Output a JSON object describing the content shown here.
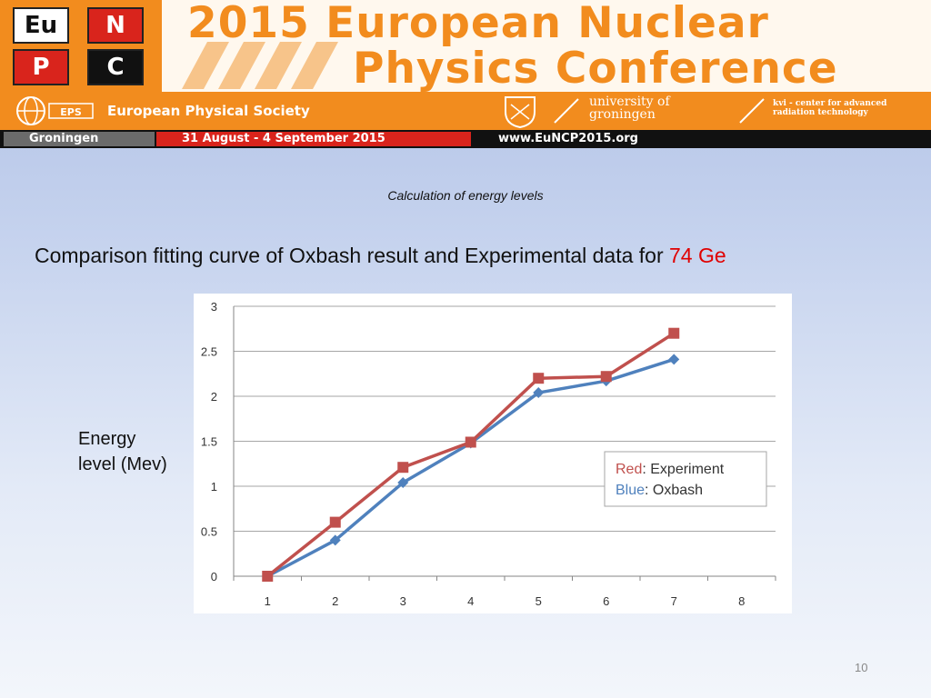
{
  "banner": {
    "logo_cells": [
      {
        "text": "Eu",
        "bg": "#ffffff",
        "fg": "#111111"
      },
      {
        "text": "N",
        "bg": "#d9241c",
        "fg": "#ffffff"
      },
      {
        "text": "P",
        "bg": "#d9241c",
        "fg": "#ffffff"
      },
      {
        "text": "C",
        "bg": "#111111",
        "fg": "#ffffff"
      }
    ],
    "conference_title_line1": "2015 European Nuclear",
    "conference_title_line2": "Physics Conference",
    "eps_logo_text": "EPS",
    "society": "European Physical Society",
    "university": "university of\ngroningen",
    "kvi": "kvi - center for advanced\nradiation technology",
    "city": "Groningen",
    "dates": "31 August - 4 September 2015",
    "website": "www.EuNCP2015.org",
    "accent_color": "#f28c1e"
  },
  "slide": {
    "subtitle": "Calculation of energy levels",
    "title_prefix": "Comparison fitting curve of Oxbash result and Experimental data for ",
    "title_highlight": "74 Ge",
    "y_axis_label": "Energy\nlevel  (Mev)",
    "page_number": "10"
  },
  "chart_data": {
    "type": "line",
    "x": [
      1,
      2,
      3,
      4,
      5,
      6,
      7
    ],
    "x_ticks": [
      "1",
      "2",
      "3",
      "4",
      "5",
      "6",
      "7",
      "8"
    ],
    "y_ticks": [
      "0",
      "0.5",
      "1",
      "1.5",
      "2",
      "2.5",
      "3"
    ],
    "ylim": [
      0,
      3
    ],
    "xlim": [
      0.5,
      8.5
    ],
    "grid": true,
    "legend_placement": "center-right",
    "series": [
      {
        "legend_color_word": "Red",
        "legend_text": ": Experiment",
        "color": "#c0504d",
        "marker": "square",
        "values": [
          0,
          0.6,
          1.21,
          1.49,
          2.2,
          2.22,
          2.7
        ]
      },
      {
        "legend_color_word": "Blue",
        "legend_text": ": Oxbash",
        "color": "#4f81bd",
        "marker": "diamond",
        "values": [
          0,
          0.4,
          1.04,
          1.48,
          2.04,
          2.17,
          2.41
        ]
      }
    ]
  }
}
